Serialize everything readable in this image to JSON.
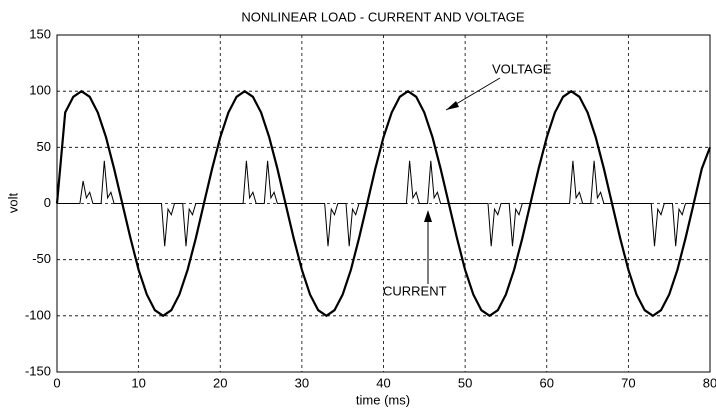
{
  "chart_data": {
    "type": "line",
    "title": "NONLINEAR LOAD - CURRENT AND VOLTAGE",
    "xlabel": "time (ms)",
    "ylabel": "volt",
    "xlim": [
      0,
      80
    ],
    "ylim": [
      -150,
      150
    ],
    "xticks": [
      0,
      10,
      20,
      30,
      40,
      50,
      60,
      70,
      80
    ],
    "yticks": [
      -150,
      -100,
      -50,
      0,
      50,
      100,
      150
    ],
    "grid": true,
    "annotations": [
      {
        "text": "VOLTAGE"
      },
      {
        "text": "CURRENT"
      }
    ],
    "series": [
      {
        "name": "VOLTAGE",
        "color": "#000000",
        "x": [
          0,
          1,
          2,
          3,
          4,
          5,
          6,
          7,
          8,
          9,
          10,
          11,
          12,
          13,
          14,
          15,
          16,
          17,
          18,
          19,
          20,
          21,
          22,
          23,
          24,
          25,
          26,
          27,
          28,
          29,
          30,
          31,
          32,
          33,
          34,
          35,
          36,
          37,
          38,
          39,
          40,
          41,
          42,
          43,
          44,
          45,
          46,
          47,
          48,
          49,
          50,
          51,
          52,
          53,
          54,
          55,
          56,
          57,
          58,
          59,
          60,
          61,
          62,
          63,
          64,
          65,
          66,
          67,
          68,
          69,
          70,
          71,
          72,
          73,
          74,
          75,
          76,
          77,
          78,
          79,
          80
        ],
        "values": [
          0,
          81,
          95,
          100,
          95,
          81,
          59,
          31,
          0,
          -31,
          -59,
          -81,
          -95,
          -100,
          -95,
          -81,
          -59,
          -31,
          0,
          31,
          59,
          81,
          95,
          100,
          95,
          81,
          59,
          31,
          0,
          -31,
          -59,
          -81,
          -95,
          -100,
          -95,
          -81,
          -59,
          -31,
          0,
          31,
          59,
          81,
          95,
          100,
          95,
          81,
          59,
          31,
          0,
          -31,
          -59,
          -81,
          -95,
          -100,
          -95,
          -81,
          -59,
          -31,
          0,
          31,
          59,
          81,
          95,
          100,
          95,
          81,
          59,
          31,
          0,
          -31,
          -59,
          -81,
          -95,
          -100,
          -95,
          -81,
          -59,
          -31,
          0,
          31,
          50
        ]
      },
      {
        "name": "CURRENT",
        "color": "#000000",
        "x": [
          0,
          2.8,
          3.2,
          3.6,
          4,
          4.4,
          5.4,
          5.8,
          6.2,
          6.6,
          7,
          12.8,
          13.2,
          13.6,
          14,
          14.4,
          15.4,
          15.8,
          16.2,
          16.6,
          17,
          22.8,
          23.2,
          23.6,
          24,
          24.4,
          25.4,
          25.8,
          26.2,
          26.6,
          27,
          32.8,
          33.2,
          33.6,
          34,
          34.4,
          35.4,
          35.8,
          36.2,
          36.6,
          37,
          42.8,
          43.2,
          43.6,
          44,
          44.4,
          45.4,
          45.8,
          46.2,
          46.6,
          47,
          52.8,
          53.2,
          53.6,
          54,
          54.4,
          55.4,
          55.8,
          56.2,
          56.6,
          57,
          62.8,
          63.2,
          63.6,
          64,
          64.4,
          65.4,
          65.8,
          66.2,
          66.6,
          67,
          72.8,
          73.2,
          73.6,
          74,
          74.4,
          75.4,
          75.8,
          76.2,
          76.6,
          77,
          80
        ],
        "values": [
          0,
          0,
          20,
          5,
          10,
          0,
          0,
          38,
          5,
          10,
          0,
          0,
          -38,
          -5,
          -10,
          0,
          0,
          -38,
          -5,
          -10,
          0,
          0,
          38,
          5,
          10,
          0,
          0,
          38,
          5,
          10,
          0,
          0,
          -38,
          -5,
          -10,
          0,
          0,
          -38,
          -5,
          -10,
          0,
          0,
          38,
          5,
          10,
          0,
          0,
          38,
          5,
          10,
          0,
          0,
          -38,
          -5,
          -10,
          0,
          0,
          -38,
          -5,
          -10,
          0,
          0,
          38,
          5,
          10,
          0,
          0,
          38,
          5,
          10,
          0,
          0,
          -38,
          -5,
          -10,
          0,
          0,
          -38,
          -5,
          -10,
          0,
          0
        ]
      }
    ]
  }
}
